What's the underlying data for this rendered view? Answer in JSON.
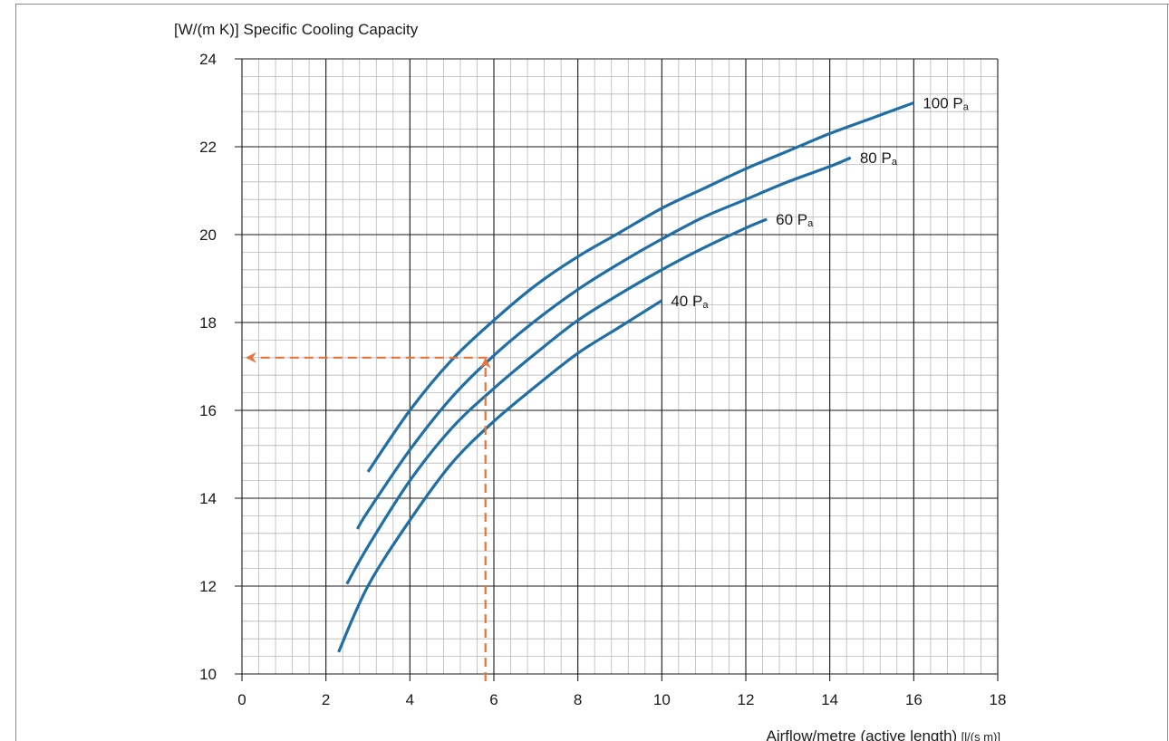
{
  "chart_data": {
    "type": "line",
    "ylabel": "[W/(m K)] Specific Cooling Capacity",
    "xlabel": "Airflow/metre (active length)",
    "xlabel_unit": "[l/(s m)]",
    "xlim": [
      0,
      18
    ],
    "ylim": [
      10,
      24
    ],
    "x_ticks": [
      "0",
      "2",
      "4",
      "6",
      "8",
      "10",
      "12",
      "14",
      "16",
      "18"
    ],
    "y_ticks": [
      "10",
      "12",
      "14",
      "16",
      "18",
      "20",
      "22",
      "24"
    ],
    "grid": true,
    "series": [
      {
        "name": "40 Pa",
        "label_main": "40 P",
        "label_sub": "a",
        "x": [
          2.3,
          3.0,
          4.0,
          5.0,
          6.0,
          7.0,
          8.0,
          9.0,
          10.0
        ],
        "y": [
          10.5,
          12.0,
          13.5,
          14.8,
          15.75,
          16.55,
          17.3,
          17.9,
          18.5
        ]
      },
      {
        "name": "60 Pa",
        "label_main": "60 P",
        "label_sub": "a",
        "x": [
          2.5,
          3.0,
          4.0,
          5.0,
          6.0,
          7.0,
          8.0,
          9.0,
          10.0,
          11.0,
          12.0,
          12.5
        ],
        "y": [
          12.05,
          12.9,
          14.4,
          15.6,
          16.5,
          17.3,
          18.05,
          18.65,
          19.2,
          19.7,
          20.15,
          20.35
        ]
      },
      {
        "name": "80 Pa",
        "label_main": "80 P",
        "label_sub": "a",
        "x": [
          2.75,
          3.0,
          4.0,
          5.0,
          6.0,
          7.0,
          8.0,
          9.0,
          10.0,
          11.0,
          12.0,
          13.0,
          14.0,
          14.5
        ],
        "y": [
          13.3,
          13.7,
          15.1,
          16.3,
          17.25,
          18.05,
          18.75,
          19.35,
          19.9,
          20.4,
          20.8,
          21.2,
          21.55,
          21.75
        ]
      },
      {
        "name": "100 Pa",
        "label_main": "100 P",
        "label_sub": "a",
        "x": [
          3.0,
          4.0,
          5.0,
          6.0,
          7.0,
          8.0,
          9.0,
          10.0,
          11.0,
          12.0,
          13.0,
          14.0,
          15.0,
          16.0
        ],
        "y": [
          14.6,
          16.0,
          17.15,
          18.05,
          18.85,
          19.5,
          20.05,
          20.6,
          21.05,
          21.5,
          21.9,
          22.3,
          22.65,
          23.0
        ]
      }
    ],
    "reading_example": {
      "x": 5.8,
      "y": 17.2,
      "color": "#e8743b"
    },
    "colors": {
      "series": "#1f6fa6",
      "grid_major": "#1a1a1a",
      "grid_minor": "#b8b8b8",
      "reading_line": "#e8743b"
    }
  }
}
